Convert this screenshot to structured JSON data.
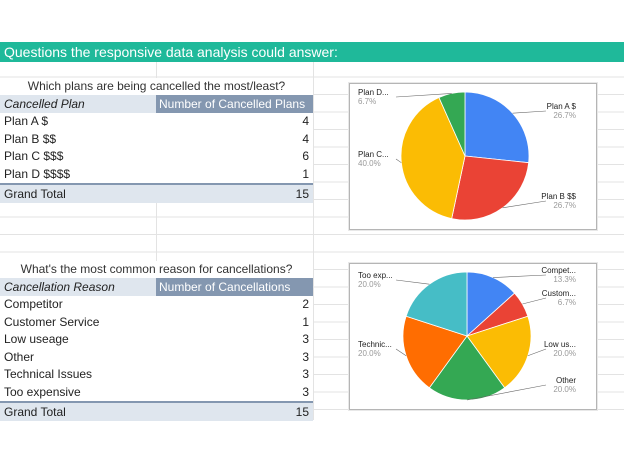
{
  "header": {
    "title": "Questions the responsive data analysis could answer:"
  },
  "plans_table": {
    "caption": "Which plans are being cancelled the most/least?",
    "col1": "Cancelled Plan",
    "col2": "Number of Cancelled Plans",
    "rows": [
      {
        "label": "Plan A $",
        "value": "4"
      },
      {
        "label": "Plan B $$",
        "value": "4"
      },
      {
        "label": "Plan C $$$",
        "value": "6"
      },
      {
        "label": "Plan D $$$$",
        "value": "1"
      }
    ],
    "total_label": "Grand Total",
    "total_value": "15"
  },
  "reasons_table": {
    "caption": "What's the most common reason for cancellations?",
    "col1": "Cancellation Reason",
    "col2": "Number of Cancellations",
    "rows": [
      {
        "label": "Competitor",
        "value": "2"
      },
      {
        "label": "Customer Service",
        "value": "1"
      },
      {
        "label": "Low useage",
        "value": "3"
      },
      {
        "label": "Other",
        "value": "3"
      },
      {
        "label": "Technical Issues",
        "value": "3"
      },
      {
        "label": "Too expensive",
        "value": "3"
      }
    ],
    "total_label": "Grand Total",
    "total_value": "15"
  },
  "chart_data": [
    {
      "type": "pie",
      "categories": [
        "Plan A $",
        "Plan B $$",
        "Plan C $$$",
        "Plan D $$$$"
      ],
      "values": [
        4,
        4,
        6,
        1
      ],
      "colors": [
        "#4285f4",
        "#ea4335",
        "#fbbc04",
        "#34a853"
      ],
      "labels": [
        {
          "text": "Plan A $",
          "pct": "26.7%"
        },
        {
          "text": "Plan B $$",
          "pct": "26.7%"
        },
        {
          "text": "Plan C...",
          "pct": "40.0%"
        },
        {
          "text": "Plan D...",
          "pct": "6.7%"
        }
      ]
    },
    {
      "type": "pie",
      "categories": [
        "Competitor",
        "Customer Service",
        "Low useage",
        "Other",
        "Technical Issues",
        "Too expensive"
      ],
      "values": [
        2,
        1,
        3,
        3,
        3,
        3
      ],
      "colors": [
        "#4285f4",
        "#ea4335",
        "#fbbc04",
        "#34a853",
        "#ff6d01",
        "#46bdc6"
      ],
      "labels": [
        {
          "text": "Compet...",
          "pct": "13.3%"
        },
        {
          "text": "Custom...",
          "pct": "6.7%"
        },
        {
          "text": "Low us...",
          "pct": "20.0%"
        },
        {
          "text": "Other",
          "pct": "20.0%"
        },
        {
          "text": "Technic...",
          "pct": "20.0%"
        },
        {
          "text": "Too exp...",
          "pct": "20.0%"
        }
      ]
    }
  ]
}
